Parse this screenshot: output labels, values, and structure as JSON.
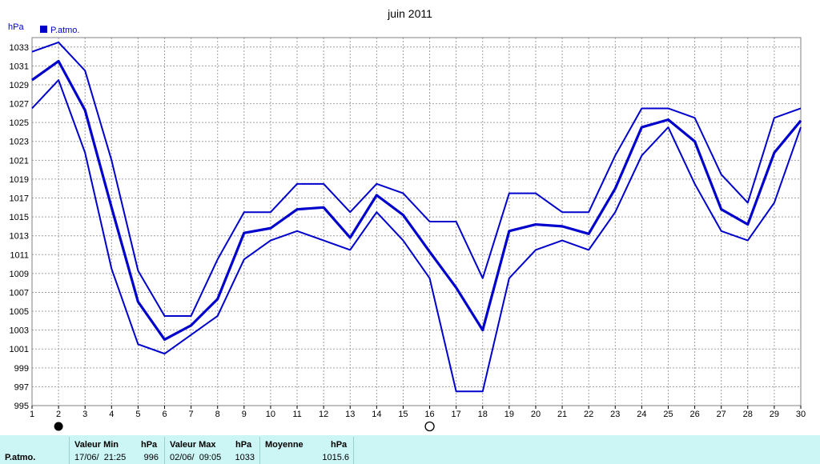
{
  "chart_data": {
    "type": "line",
    "title": "juin 2011",
    "ylabel": "hPa",
    "xlabel": "",
    "legend": {
      "label": "P.atmo.",
      "color": "#0000cc",
      "placement": "top-left"
    },
    "ylim": [
      995,
      1034
    ],
    "xlim": [
      1,
      30
    ],
    "grid": true,
    "y_ticks": [
      995,
      997,
      999,
      1001,
      1003,
      1005,
      1007,
      1009,
      1011,
      1013,
      1015,
      1017,
      1019,
      1021,
      1023,
      1025,
      1027,
      1029,
      1031,
      1033
    ],
    "x": [
      1,
      2,
      3,
      4,
      5,
      6,
      7,
      8,
      9,
      10,
      11,
      12,
      13,
      14,
      15,
      16,
      17,
      18,
      19,
      20,
      21,
      22,
      23,
      24,
      25,
      26,
      27,
      28,
      29,
      30
    ],
    "series": [
      {
        "values": [
          1032.5,
          1033.5,
          1030.5,
          1021,
          1009.3,
          1004.5,
          1004.5,
          1010.5,
          1015.5,
          1015.5,
          1018.5,
          1018.5,
          1015.5,
          1018.5,
          1017.5,
          1014.5,
          1014.5,
          1008.5,
          1017.5,
          1017.5,
          1015.5,
          1015.5,
          1021.5,
          1026.5,
          1026.5,
          1025.5,
          1019.5,
          1016.5,
          1025.5,
          1026.5
        ]
      },
      {
        "values": [
          1029.5,
          1031.5,
          1026.3,
          1016,
          1006,
          1002,
          1003.5,
          1006.3,
          1013.3,
          1013.8,
          1015.8,
          1016,
          1012.8,
          1017.3,
          1015.2,
          1011.3,
          1007.5,
          1003,
          1013.5,
          1014.2,
          1014,
          1013.2,
          1018,
          1024.5,
          1025.3,
          1023,
          1015.8,
          1014.2,
          1021.8,
          1025.2
        ]
      },
      {
        "values": [
          1026.5,
          1029.5,
          1021.8,
          1009.5,
          1001.5,
          1000.5,
          1002.5,
          1004.5,
          1010.5,
          1012.5,
          1013.5,
          1012.5,
          1011.5,
          1015.5,
          1012.5,
          1008.5,
          996.5,
          996.5,
          1008.5,
          1011.5,
          1012.5,
          1011.5,
          1015.5,
          1021.5,
          1024.5,
          1018.5,
          1013.5,
          1012.5,
          1016.5,
          1024.5
        ]
      }
    ],
    "markers": [
      {
        "x": 2,
        "symbol": "full-moon"
      },
      {
        "x": 16,
        "symbol": "new-moon"
      }
    ]
  },
  "stats": {
    "row_label": "P.atmo.",
    "min": {
      "header": "Valeur Min",
      "unit": "hPa",
      "date": "17/06/  21:25",
      "value": "996"
    },
    "max": {
      "header": "Valeur Max",
      "unit": "hPa",
      "date": "02/06/  09:05",
      "value": "1033"
    },
    "avg": {
      "header": "Moyenne",
      "unit": "hPa",
      "value": "1015.6"
    }
  }
}
